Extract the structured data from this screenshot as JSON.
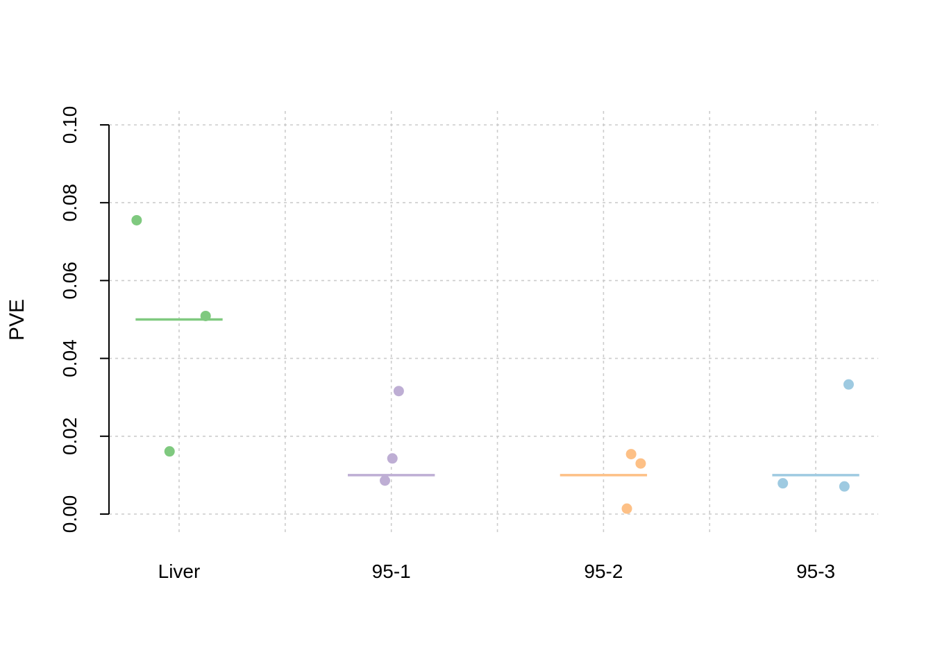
{
  "chart_data": {
    "type": "scatter",
    "title": "",
    "xlabel": "",
    "ylabel": "PVE",
    "categories": [
      "Liver",
      "95-1",
      "95-2",
      "95-3"
    ],
    "ylim": [
      0.0,
      0.1
    ],
    "y_ticks": [
      "0.00",
      "0.02",
      "0.04",
      "0.06",
      "0.08",
      "0.10"
    ],
    "grid": true,
    "series": [
      {
        "category": "Liver",
        "color": "#7fc97f",
        "mean": 0.05,
        "points": [
          {
            "x_offset": -0.2,
            "y": 0.0755
          },
          {
            "x_offset": -0.045,
            "y": 0.0161
          },
          {
            "x_offset": 0.125,
            "y": 0.0509
          }
        ]
      },
      {
        "category": "95-1",
        "color": "#beaed4",
        "mean": 0.01,
        "points": [
          {
            "x_offset": 0.035,
            "y": 0.0316
          },
          {
            "x_offset": 0.005,
            "y": 0.0143
          },
          {
            "x_offset": -0.03,
            "y": 0.0086
          }
        ]
      },
      {
        "category": "95-2",
        "color": "#fdc086",
        "mean": 0.01,
        "points": [
          {
            "x_offset": 0.13,
            "y": 0.0154
          },
          {
            "x_offset": 0.175,
            "y": 0.013
          },
          {
            "x_offset": 0.11,
            "y": 0.0014
          }
        ]
      },
      {
        "category": "95-3",
        "color": "#9ecae1",
        "mean": 0.01,
        "points": [
          {
            "x_offset": 0.155,
            "y": 0.0333
          },
          {
            "x_offset": -0.155,
            "y": 0.0079
          },
          {
            "x_offset": 0.135,
            "y": 0.0071
          }
        ]
      }
    ]
  }
}
